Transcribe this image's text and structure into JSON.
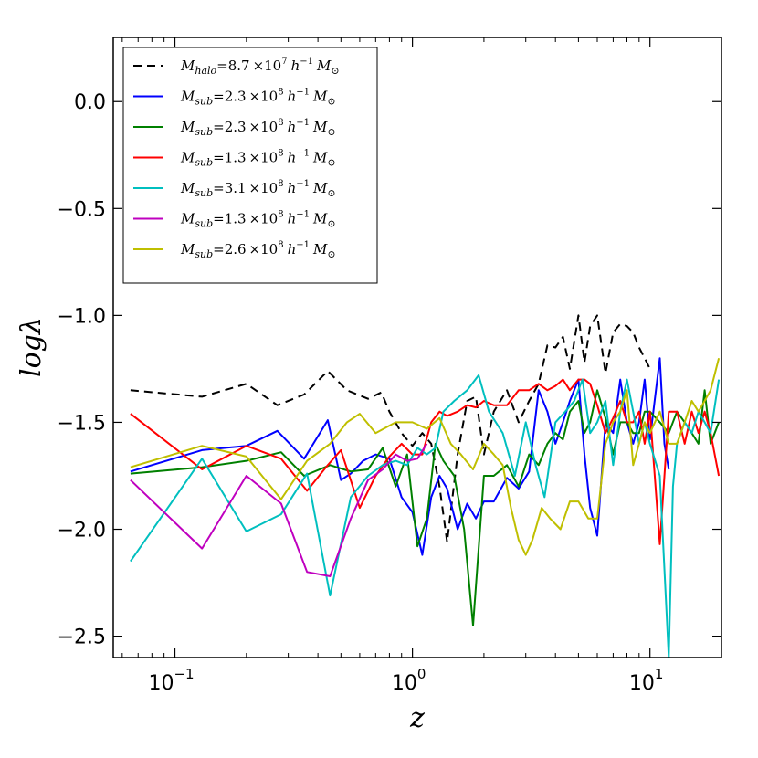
{
  "chart_data": {
    "type": "line",
    "xscale": "log",
    "xlabel": "z",
    "ylabel": "logλ",
    "xlim": [
      0.055,
      20
    ],
    "ylim": [
      -2.6,
      0.3
    ],
    "yticks": [
      {
        "value": 0.0,
        "label": "0.0"
      },
      {
        "value": -0.5,
        "label": "−0.5"
      },
      {
        "value": -1.0,
        "label": "−1.0"
      },
      {
        "value": -1.5,
        "label": "−1.5"
      },
      {
        "value": -2.0,
        "label": "−2.0"
      },
      {
        "value": -2.5,
        "label": "−2.5"
      }
    ],
    "xticks": [
      {
        "value": 0.1,
        "base": "10",
        "exp": "−1"
      },
      {
        "value": 1,
        "base": "10",
        "exp": "0"
      },
      {
        "value": 10,
        "base": "10",
        "exp": "1"
      }
    ],
    "legend_position": "upper-left",
    "series": [
      {
        "name": "M_halo = 8.7 ×10^7 h^-1 M_⊙",
        "legend": {
          "sym": "M",
          "sub": "halo",
          "val": "=8.7 ×10",
          "exp": "7",
          "unit_h": "h",
          "unit_exp": "−1",
          "unit_m": "M",
          "unit_sub": "⊙"
        },
        "color": "#000000",
        "dash": "9,6",
        "x": [
          0.065,
          0.13,
          0.2,
          0.27,
          0.35,
          0.44,
          0.53,
          0.65,
          0.74,
          0.8,
          0.9,
          1.0,
          1.1,
          1.2,
          1.3,
          1.4,
          1.55,
          1.7,
          1.85,
          2.0,
          2.2,
          2.5,
          2.8,
          3.1,
          3.4,
          3.7,
          4.0,
          4.3,
          4.6,
          5.0,
          5.3,
          5.6,
          6.0,
          6.5,
          7.0,
          7.5,
          8.0,
          8.5,
          9.0,
          9.5,
          10.0
        ],
        "y": [
          -1.35,
          -1.38,
          -1.32,
          -1.42,
          -1.37,
          -1.26,
          -1.35,
          -1.39,
          -1.36,
          -1.45,
          -1.55,
          -1.61,
          -1.55,
          -1.6,
          -1.8,
          -2.06,
          -1.65,
          -1.4,
          -1.38,
          -1.65,
          -1.45,
          -1.35,
          -1.5,
          -1.4,
          -1.32,
          -1.14,
          -1.15,
          -1.1,
          -1.25,
          -1.0,
          -1.22,
          -1.05,
          -1.0,
          -1.27,
          -1.08,
          -1.04,
          -1.05,
          -1.08,
          -1.15,
          -1.2,
          -1.25
        ]
      },
      {
        "name": "M_sub = 2.3 ×10^8 h^-1 M_⊙",
        "legend": {
          "sym": "M",
          "sub": "sub",
          "val": "=2.3 ×10",
          "exp": "8",
          "unit_h": "h",
          "unit_exp": "−1",
          "unit_m": "M",
          "unit_sub": "⊙"
        },
        "color": "#0000ff",
        "dash": "",
        "x": [
          0.065,
          0.13,
          0.2,
          0.27,
          0.35,
          0.44,
          0.5,
          0.55,
          0.62,
          0.7,
          0.8,
          0.9,
          1.0,
          1.1,
          1.2,
          1.3,
          1.4,
          1.55,
          1.7,
          1.85,
          2.0,
          2.2,
          2.5,
          2.8,
          3.1,
          3.4,
          3.7,
          4.0,
          4.3,
          4.6,
          5.0,
          5.3,
          5.6,
          6.0,
          6.5,
          7.0,
          7.5,
          8.0,
          8.5,
          9.0,
          9.5,
          10.0,
          11.0,
          11.5,
          12.0
        ],
        "y": [
          -1.73,
          -1.63,
          -1.61,
          -1.54,
          -1.67,
          -1.49,
          -1.77,
          -1.74,
          -1.68,
          -1.65,
          -1.67,
          -1.85,
          -1.92,
          -2.12,
          -1.85,
          -1.75,
          -1.81,
          -2.0,
          -1.88,
          -1.95,
          -1.87,
          -1.87,
          -1.76,
          -1.81,
          -1.73,
          -1.35,
          -1.45,
          -1.6,
          -1.5,
          -1.4,
          -1.3,
          -1.65,
          -1.9,
          -2.03,
          -1.5,
          -1.55,
          -1.3,
          -1.5,
          -1.6,
          -1.5,
          -1.3,
          -1.58,
          -1.2,
          -1.6,
          -1.72
        ]
      },
      {
        "name": "M_sub = 2.3 ×10^8 h^-1 M_⊙",
        "legend": {
          "sym": "M",
          "sub": "sub",
          "val": "=2.3 ×10",
          "exp": "8",
          "unit_h": "h",
          "unit_exp": "−1",
          "unit_m": "M",
          "unit_sub": "⊙"
        },
        "color": "#008000",
        "dash": "",
        "x": [
          0.065,
          0.13,
          0.2,
          0.28,
          0.35,
          0.45,
          0.55,
          0.65,
          0.75,
          0.85,
          0.95,
          1.05,
          1.15,
          1.25,
          1.35,
          1.5,
          1.65,
          1.8,
          2.0,
          2.2,
          2.5,
          2.8,
          3.1,
          3.4,
          3.7,
          4.0,
          4.3,
          4.6,
          5.0,
          5.3,
          5.6,
          6.0,
          6.5,
          7.0,
          7.5,
          8.0,
          8.5,
          9.0,
          9.5,
          10.0,
          11.0,
          12.0,
          13.0,
          14.0,
          15.0,
          16.0,
          17.0,
          18.0,
          19.5
        ],
        "y": [
          -1.74,
          -1.71,
          -1.68,
          -1.64,
          -1.75,
          -1.7,
          -1.73,
          -1.72,
          -1.62,
          -1.8,
          -1.65,
          -2.08,
          -1.95,
          -1.6,
          -1.68,
          -1.75,
          -2.0,
          -2.45,
          -1.75,
          -1.75,
          -1.7,
          -1.8,
          -1.65,
          -1.7,
          -1.6,
          -1.55,
          -1.58,
          -1.45,
          -1.4,
          -1.55,
          -1.5,
          -1.35,
          -1.48,
          -1.65,
          -1.5,
          -1.5,
          -1.55,
          -1.55,
          -1.45,
          -1.45,
          -1.5,
          -1.55,
          -1.45,
          -1.5,
          -1.55,
          -1.6,
          -1.35,
          -1.6,
          -1.5
        ]
      },
      {
        "name": "M_sub = 1.3 ×10^8 h^-1 M_⊙",
        "legend": {
          "sym": "M",
          "sub": "sub",
          "val": "=1.3 ×10",
          "exp": "8",
          "unit_h": "h",
          "unit_exp": "−1",
          "unit_m": "M",
          "unit_sub": "⊙"
        },
        "color": "#ff0000",
        "dash": "",
        "x": [
          0.065,
          0.13,
          0.2,
          0.28,
          0.36,
          0.44,
          0.5,
          0.6,
          0.7,
          0.8,
          0.9,
          1.0,
          1.1,
          1.2,
          1.3,
          1.4,
          1.55,
          1.7,
          1.85,
          2.0,
          2.2,
          2.5,
          2.8,
          3.1,
          3.4,
          3.7,
          4.0,
          4.3,
          4.6,
          5.0,
          5.3,
          5.6,
          6.0,
          6.5,
          7.0,
          7.5,
          8.0,
          8.5,
          9.0,
          9.5,
          10.0,
          11.0,
          12.0,
          13.0,
          14.0,
          15.0,
          16.0,
          17.0,
          18.0,
          19.5
        ],
        "y": [
          -1.46,
          -1.72,
          -1.61,
          -1.67,
          -1.82,
          -1.7,
          -1.63,
          -1.9,
          -1.75,
          -1.66,
          -1.6,
          -1.65,
          -1.65,
          -1.5,
          -1.45,
          -1.47,
          -1.45,
          -1.42,
          -1.43,
          -1.4,
          -1.42,
          -1.42,
          -1.35,
          -1.35,
          -1.32,
          -1.35,
          -1.33,
          -1.3,
          -1.35,
          -1.3,
          -1.3,
          -1.32,
          -1.42,
          -1.55,
          -1.48,
          -1.4,
          -1.5,
          -1.5,
          -1.45,
          -1.6,
          -1.45,
          -2.07,
          -1.45,
          -1.45,
          -1.6,
          -1.45,
          -1.55,
          -1.45,
          -1.55,
          -1.75
        ]
      },
      {
        "name": "M_sub = 3.1 ×10^8 h^-1 M_⊙",
        "legend": {
          "sym": "M",
          "sub": "sub",
          "val": "=3.1 ×10",
          "exp": "8",
          "unit_h": "h",
          "unit_exp": "−1",
          "unit_m": "M",
          "unit_sub": "⊙"
        },
        "color": "#00bfbf",
        "dash": "",
        "x": [
          0.065,
          0.13,
          0.2,
          0.28,
          0.36,
          0.45,
          0.55,
          0.65,
          0.75,
          0.85,
          0.95,
          1.05,
          1.15,
          1.25,
          1.35,
          1.5,
          1.7,
          1.9,
          2.1,
          2.4,
          2.7,
          3.0,
          3.3,
          3.6,
          4.0,
          4.4,
          4.8,
          5.2,
          5.6,
          6.0,
          6.5,
          7.0,
          7.5,
          8.0,
          8.5,
          9.0,
          9.5,
          10.0,
          11.0,
          12.0,
          12.5,
          13.0,
          14.0,
          15.0,
          16.0,
          17.0,
          18.0,
          19.5
        ],
        "y": [
          -2.15,
          -1.67,
          -2.01,
          -1.93,
          -1.74,
          -2.31,
          -1.85,
          -1.75,
          -1.7,
          -1.68,
          -1.7,
          -1.62,
          -1.65,
          -1.62,
          -1.45,
          -1.4,
          -1.35,
          -1.28,
          -1.45,
          -1.55,
          -1.75,
          -1.5,
          -1.7,
          -1.85,
          -1.5,
          -1.45,
          -1.4,
          -1.3,
          -1.55,
          -1.5,
          -1.4,
          -1.7,
          -1.45,
          -1.3,
          -1.45,
          -1.6,
          -1.5,
          -1.6,
          -1.75,
          -2.6,
          -1.8,
          -1.6,
          -1.5,
          -1.55,
          -1.45,
          -1.5,
          -1.55,
          -1.3
        ]
      },
      {
        "name": "M_sub = 1.3 ×10^8 h^-1 M_⊙",
        "legend": {
          "sym": "M",
          "sub": "sub",
          "val": "=1.3 ×10",
          "exp": "8",
          "unit_h": "h",
          "unit_exp": "−1",
          "unit_m": "M",
          "unit_sub": "⊙"
        },
        "color": "#bf00bf",
        "dash": "",
        "x": [
          0.065,
          0.13,
          0.2,
          0.28,
          0.36,
          0.45,
          0.55,
          0.65,
          0.75,
          0.85,
          0.95,
          1.05,
          1.15
        ],
        "y": [
          -1.77,
          -2.09,
          -1.75,
          -1.88,
          -2.2,
          -2.22,
          -1.95,
          -1.77,
          -1.72,
          -1.65,
          -1.68,
          -1.67,
          -1.6
        ]
      },
      {
        "name": "M_sub = 2.6 ×10^8 h^-1 M_⊙",
        "legend": {
          "sym": "M",
          "sub": "sub",
          "val": "=2.6 ×10",
          "exp": "8",
          "unit_h": "h",
          "unit_exp": "−1",
          "unit_m": "M",
          "unit_sub": "⊙"
        },
        "color": "#bfbf00",
        "dash": "",
        "x": [
          0.065,
          0.13,
          0.2,
          0.28,
          0.36,
          0.45,
          0.53,
          0.6,
          0.7,
          0.85,
          1.0,
          1.15,
          1.3,
          1.45,
          1.6,
          1.8,
          2.0,
          2.2,
          2.4,
          2.6,
          2.8,
          3.0,
          3.2,
          3.5,
          3.8,
          4.2,
          4.6,
          5.0,
          5.5,
          6.0,
          6.5,
          7.0,
          7.5,
          8.0,
          8.5,
          9.0,
          9.5,
          10.0,
          11.0,
          12.0,
          13.0,
          14.0,
          15.0,
          16.0,
          17.0,
          18.0,
          19.5
        ],
        "y": [
          -1.71,
          -1.61,
          -1.66,
          -1.86,
          -1.68,
          -1.6,
          -1.5,
          -1.46,
          -1.55,
          -1.5,
          -1.5,
          -1.53,
          -1.48,
          -1.6,
          -1.65,
          -1.72,
          -1.6,
          -1.65,
          -1.7,
          -1.9,
          -2.05,
          -2.12,
          -2.05,
          -1.9,
          -1.95,
          -2.0,
          -1.87,
          -1.87,
          -1.95,
          -1.95,
          -1.6,
          -1.5,
          -1.45,
          -1.35,
          -1.7,
          -1.6,
          -1.5,
          -1.55,
          -1.45,
          -1.6,
          -1.6,
          -1.5,
          -1.4,
          -1.45,
          -1.4,
          -1.35,
          -1.2
        ]
      }
    ]
  }
}
